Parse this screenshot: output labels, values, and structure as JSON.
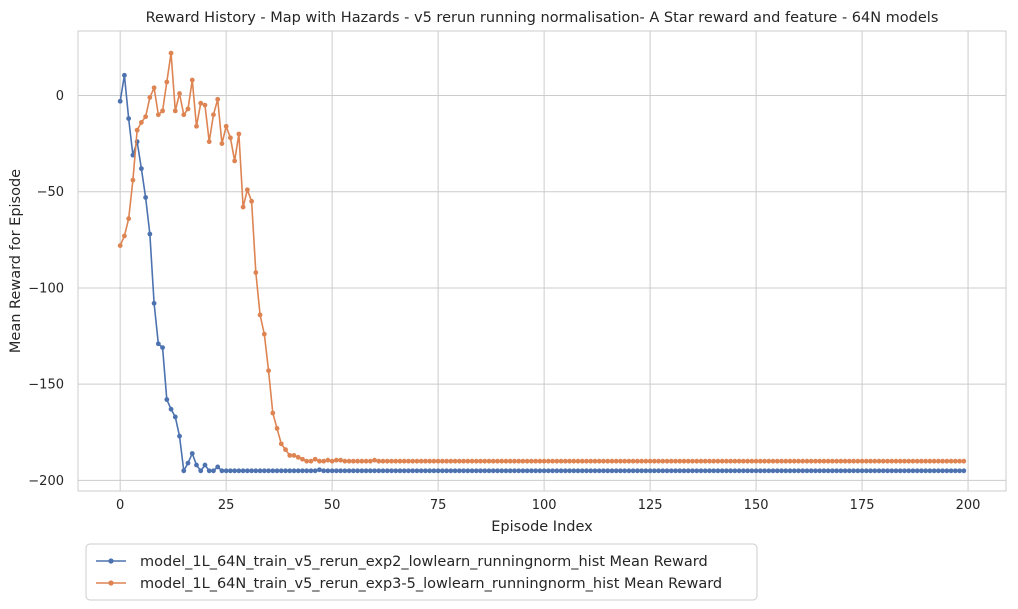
{
  "chart_data": {
    "type": "line",
    "title": "Reward History - Map with Hazards - v5 rerun running normalisation- A Star reward and feature - 64N models",
    "xlabel": "Episode Index",
    "ylabel": "Mean Reward for Episode",
    "xlim": [
      -9.95,
      208.95
    ],
    "ylim": [
      -205.5,
      33.5
    ],
    "xticks": [
      0,
      25,
      50,
      75,
      100,
      125,
      150,
      175,
      200
    ],
    "yticks": [
      0,
      -50,
      -100,
      -150,
      -200
    ],
    "xtick_labels": [
      "0",
      "25",
      "50",
      "75",
      "100",
      "125",
      "150",
      "175",
      "200"
    ],
    "ytick_labels": [
      "0",
      "−50",
      "−100",
      "−150",
      "−200"
    ],
    "grid": true,
    "legend_position": "below-left",
    "series": [
      {
        "name": "model_1L_64N_train_v5_rerun_exp2_lowlearn_runningnorm_hist Mean Reward",
        "color": "#4c72b0",
        "head": [
          -3,
          10.5,
          -12,
          -31,
          -24,
          -38,
          -53,
          -72,
          -108,
          -129,
          -131,
          -158,
          -163,
          -167,
          -177,
          -195,
          -191,
          -186,
          -192,
          -195,
          -192,
          -195,
          -195,
          -193,
          -195,
          -195,
          -195,
          -195,
          -195,
          -195,
          -195,
          -195,
          -195,
          -195,
          -195,
          -195,
          -195,
          -195,
          -195,
          -195,
          -195,
          -195,
          -195,
          -195,
          -195,
          -195,
          -195,
          -194.5
        ],
        "tail_value": -195,
        "length": 200
      },
      {
        "name": "model_1L_64N_train_v5_rerun_exp3-5_lowlearn_runningnorm_hist Mean Reward",
        "color": "#dd8452",
        "head": [
          -78,
          -73,
          -64,
          -44,
          -18,
          -14,
          -11,
          -1,
          4,
          -10,
          -8,
          7,
          22,
          -8,
          1,
          -10,
          -7,
          8,
          -16,
          -4,
          -5,
          -24,
          -10,
          -2,
          -25,
          -16,
          -22,
          -34,
          -20,
          -58,
          -49,
          -55,
          -92,
          -114,
          -124,
          -143,
          -165,
          -173,
          -181,
          -184,
          -187,
          -187,
          -188,
          -189,
          -190,
          -190,
          -189,
          -190,
          -190,
          -189.5,
          -190,
          -189.5,
          -189.5,
          -190,
          -190,
          -190,
          -190,
          -190,
          -190,
          -190,
          -189.5
        ],
        "tail_value": -190,
        "length": 200
      }
    ]
  }
}
